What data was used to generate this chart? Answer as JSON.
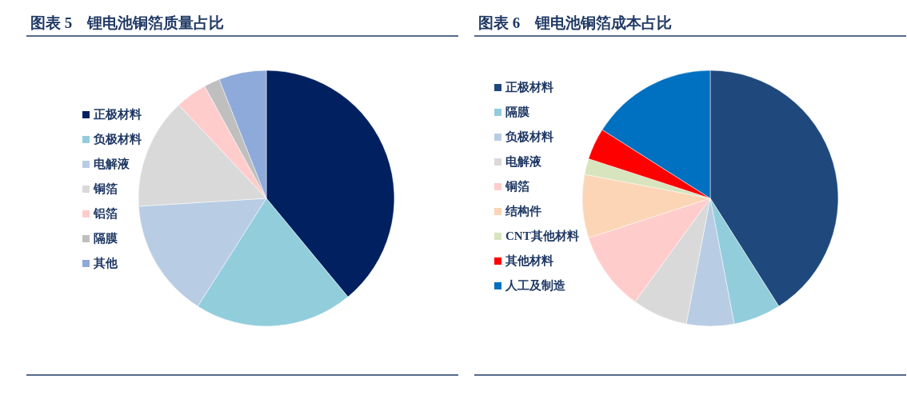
{
  "chart_data": [
    {
      "type": "pie",
      "title": "图表 5　锂电池铜箔质量占比",
      "categories": [
        "正极材料",
        "负极材料",
        "电解液",
        "铜箔",
        "铝箔",
        "隔膜",
        "其他"
      ],
      "values": [
        39,
        20,
        15,
        14,
        4,
        2,
        6
      ],
      "colors": [
        "#002060",
        "#92cddc",
        "#b8cce4",
        "#d9d9d9",
        "#ffcccc",
        "#bfbfbf",
        "#8eaadb"
      ],
      "legend": "left"
    },
    {
      "type": "pie",
      "title": "图表 6　锂电池铜箔成本占比",
      "categories": [
        "正极材料",
        "隔膜",
        "负极材料",
        "电解液",
        "铜箔",
        "结构件",
        "CNT其他材料",
        "其他材料",
        "人工及制造"
      ],
      "values": [
        41,
        6,
        6,
        7,
        10,
        8,
        2,
        4,
        16
      ],
      "colors": [
        "#1f497d",
        "#92cddc",
        "#b8cce4",
        "#d9d9d9",
        "#ffcccc",
        "#fbd5b5",
        "#d7e4bd",
        "#ff0000",
        "#0070c0"
      ],
      "legend": "left"
    }
  ]
}
